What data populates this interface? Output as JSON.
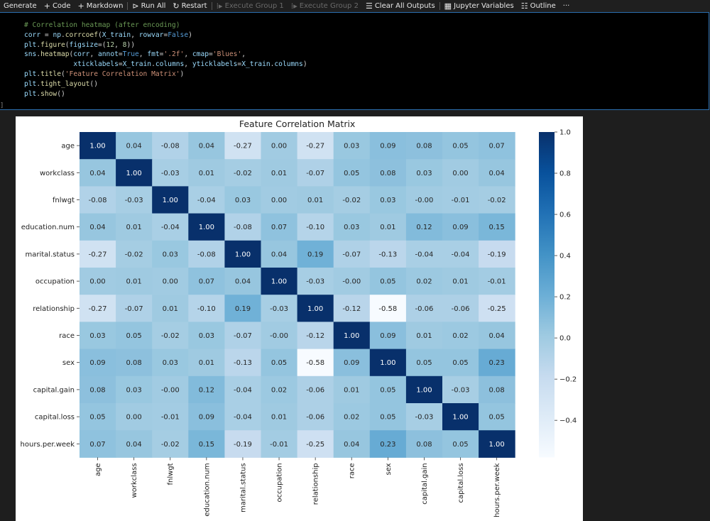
{
  "toolbar": {
    "generate": "Generate",
    "code": "Code",
    "markdown": "Markdown",
    "run_all": "Run All",
    "restart": "Restart",
    "execute_group_1": "Execute Group 1",
    "execute_group_2": "Execute Group 2",
    "clear_all_outputs": "Clear All Outputs",
    "jupyter_variables": "Jupyter Variables",
    "outline": "Outline",
    "more": "···"
  },
  "cell": {
    "execution_count": "]",
    "lines": [
      "# Correlation heatmap (after encoding)",
      "corr = np.corrcoef(X_train, rowvar=False)",
      "plt.figure(figsize=(12, 8))",
      "sns.heatmap(corr, annot=True, fmt='.2f', cmap='Blues',",
      "            xticklabels=X_train.columns, yticklabels=X_train.columns)",
      "plt.title('Feature Correlation Matrix')",
      "plt.tight_layout()",
      "plt.show()"
    ]
  },
  "chart_data": {
    "type": "heatmap",
    "title": "Feature Correlation Matrix",
    "x_labels": [
      "age",
      "workclass",
      "fnlwgt",
      "education.num",
      "marital.status",
      "occupation",
      "relationship",
      "race",
      "sex",
      "capital.gain",
      "capital.loss",
      "hours.per.week"
    ],
    "y_labels": [
      "age",
      "workclass",
      "fnlwgt",
      "education.num",
      "marital.status",
      "occupation",
      "relationship",
      "race",
      "sex",
      "capital.gain",
      "capital.loss",
      "hours.per.week"
    ],
    "values": [
      [
        1.0,
        0.04,
        -0.08,
        0.04,
        -0.27,
        0.0,
        -0.27,
        0.03,
        0.09,
        0.08,
        0.05,
        0.07
      ],
      [
        0.04,
        1.0,
        -0.03,
        0.01,
        -0.02,
        0.01,
        -0.07,
        0.05,
        0.08,
        0.03,
        0.0,
        0.04
      ],
      [
        -0.08,
        -0.03,
        1.0,
        -0.04,
        0.03,
        0.0,
        0.01,
        -0.02,
        0.03,
        -0.0,
        -0.01,
        -0.02
      ],
      [
        0.04,
        0.01,
        -0.04,
        1.0,
        -0.08,
        0.07,
        -0.1,
        0.03,
        0.01,
        0.12,
        0.09,
        0.15
      ],
      [
        -0.27,
        -0.02,
        0.03,
        -0.08,
        1.0,
        0.04,
        0.19,
        -0.07,
        -0.13,
        -0.04,
        -0.04,
        -0.19
      ],
      [
        0.0,
        0.01,
        0.0,
        0.07,
        0.04,
        1.0,
        -0.03,
        -0.0,
        0.05,
        0.02,
        0.01,
        -0.01
      ],
      [
        -0.27,
        -0.07,
        0.01,
        -0.1,
        0.19,
        -0.03,
        1.0,
        -0.12,
        -0.58,
        -0.06,
        -0.06,
        -0.25
      ],
      [
        0.03,
        0.05,
        -0.02,
        0.03,
        -0.07,
        -0.0,
        -0.12,
        1.0,
        0.09,
        0.01,
        0.02,
        0.04
      ],
      [
        0.09,
        0.08,
        0.03,
        0.01,
        -0.13,
        0.05,
        -0.58,
        0.09,
        1.0,
        0.05,
        0.05,
        0.23
      ],
      [
        0.08,
        0.03,
        -0.0,
        0.12,
        -0.04,
        0.02,
        -0.06,
        0.01,
        0.05,
        1.0,
        -0.03,
        0.08
      ],
      [
        0.05,
        0.0,
        -0.01,
        0.09,
        -0.04,
        0.01,
        -0.06,
        0.02,
        0.05,
        -0.03,
        1.0,
        0.05
      ],
      [
        0.07,
        0.04,
        -0.02,
        0.15,
        -0.19,
        -0.01,
        -0.25,
        0.04,
        0.23,
        0.08,
        0.05,
        1.0
      ]
    ],
    "annotation_format": ".2f",
    "colormap": "Blues",
    "vmin": -0.58,
    "vmax": 1.0,
    "colorbar_ticks": [
      "1.0",
      "0.8",
      "0.6",
      "0.4",
      "0.2",
      "0.0",
      "−0.2",
      "−0.4"
    ],
    "colorbar_tick_values": [
      1.0,
      0.8,
      0.6,
      0.4,
      0.2,
      0.0,
      -0.2,
      -0.4
    ]
  }
}
